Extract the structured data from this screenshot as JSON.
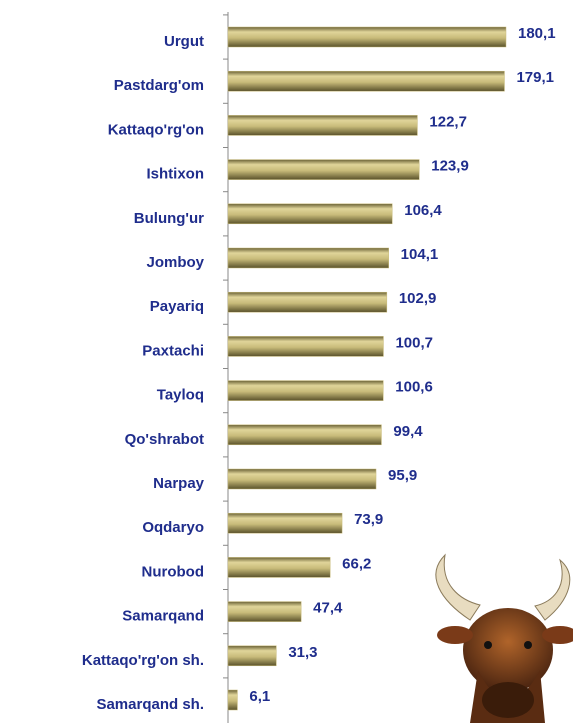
{
  "chart_data": {
    "type": "bar",
    "orientation": "horizontal",
    "categories": [
      "Urgut",
      "Pastdarg'om",
      "Kattaqo'rg'on",
      "Ishtixon",
      "Bulung'ur",
      "Jomboy",
      "Payariq",
      "Paxtachi",
      "Tayloq",
      "Qo'shrabot",
      "Narpay",
      "Oqdaryo",
      "Nurobod",
      "Samarqand",
      "Kattaqo'rg'on sh.",
      "Samarqand sh."
    ],
    "values": [
      180.1,
      179.1,
      122.7,
      123.9,
      106.4,
      104.1,
      102.9,
      100.7,
      100.6,
      99.4,
      95.9,
      73.9,
      66.2,
      47.4,
      31.3,
      6.1
    ],
    "value_labels": [
      "180,1",
      "179,1",
      "122,7",
      "123,9",
      "106,4",
      "104,1",
      "102,9",
      "100,7",
      "100,6",
      "99,4",
      "95,9",
      "73,9",
      "66,2",
      "47,4",
      "31,3",
      "6,1"
    ],
    "color": "#c8bb7a"
  }
}
